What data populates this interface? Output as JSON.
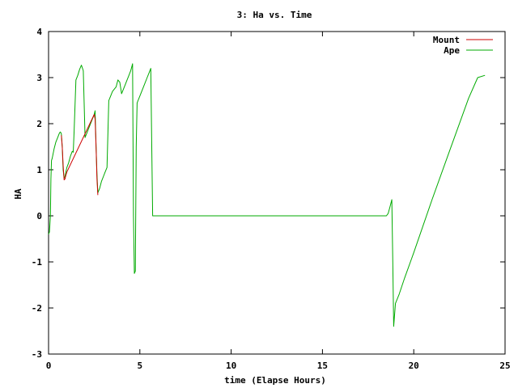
{
  "chart_data": {
    "type": "line",
    "title": "3: Ha vs. Time",
    "xlabel": "time (Elapse Hours)",
    "ylabel": "HA",
    "xlim": [
      0,
      25
    ],
    "ylim": [
      -3,
      4
    ],
    "xticks": [
      0,
      5,
      10,
      15,
      20,
      25
    ],
    "yticks": [
      -3,
      -2,
      -1,
      0,
      1,
      2,
      3,
      4
    ],
    "grid": false,
    "legend_position": "top-right",
    "series": [
      {
        "name": "Mount",
        "color": "#cc0000",
        "x": [
          0.7,
          0.75,
          0.8,
          0.85,
          0.9,
          0.95,
          1.0,
          2.5,
          2.55,
          2.6,
          2.65,
          2.7
        ],
        "y": [
          1.75,
          1.5,
          1.1,
          0.78,
          0.8,
          0.88,
          0.95,
          2.2,
          2.1,
          1.5,
          0.8,
          0.45
        ]
      },
      {
        "name": "Ape",
        "color": "#00aa00",
        "x": [
          0.0,
          0.05,
          0.1,
          0.13,
          0.16,
          0.2,
          0.3,
          0.4,
          0.5,
          0.6,
          0.65,
          0.7,
          0.75,
          0.8,
          0.85,
          0.9,
          0.95,
          1.0,
          1.1,
          1.2,
          1.25,
          1.3,
          1.35,
          1.4,
          1.5,
          1.6,
          1.7,
          1.8,
          1.9,
          2.0,
          2.05,
          2.1,
          2.2,
          2.3,
          2.4,
          2.5,
          2.55,
          2.6,
          2.65,
          2.7,
          2.8,
          2.9,
          3.0,
          3.1,
          3.2,
          3.3,
          3.4,
          3.5,
          3.6,
          3.7,
          3.8,
          3.9,
          4.0,
          4.1,
          4.2,
          4.3,
          4.4,
          4.5,
          4.55,
          4.6,
          4.65,
          4.7,
          4.75,
          4.8,
          4.85,
          4.9,
          5.0,
          5.2,
          5.4,
          5.5,
          5.55,
          5.6,
          5.65,
          5.7,
          5.8,
          10.0,
          15.0,
          18.0,
          18.5,
          18.6,
          18.7,
          18.8,
          18.85,
          18.9,
          19.0,
          19.2,
          19.5,
          20.0,
          21.0,
          22.0,
          23.0,
          23.5,
          23.9
        ],
        "y": [
          -0.4,
          -0.35,
          0.0,
          0.8,
          1.2,
          1.25,
          1.45,
          1.6,
          1.7,
          1.8,
          1.82,
          1.78,
          1.5,
          1.0,
          0.82,
          0.85,
          0.95,
          1.05,
          1.15,
          1.3,
          1.35,
          1.4,
          1.38,
          1.85,
          2.95,
          3.05,
          3.18,
          3.27,
          3.15,
          1.7,
          1.75,
          1.8,
          1.9,
          2.0,
          2.1,
          2.2,
          2.28,
          1.5,
          0.9,
          0.5,
          0.6,
          0.75,
          0.85,
          0.95,
          1.05,
          2.5,
          2.6,
          2.7,
          2.75,
          2.8,
          2.95,
          2.9,
          2.65,
          2.75,
          2.85,
          2.95,
          3.05,
          3.15,
          3.22,
          3.3,
          0.0,
          -1.25,
          -1.2,
          1.5,
          2.45,
          2.5,
          2.6,
          2.8,
          3.0,
          3.1,
          3.15,
          3.2,
          1.5,
          0.0,
          0.0,
          0.0,
          0.0,
          0.0,
          0.0,
          0.05,
          0.2,
          0.35,
          -1.0,
          -2.4,
          -1.9,
          -1.7,
          -1.35,
          -0.8,
          0.35,
          1.45,
          2.55,
          3.0,
          3.05
        ]
      }
    ]
  }
}
